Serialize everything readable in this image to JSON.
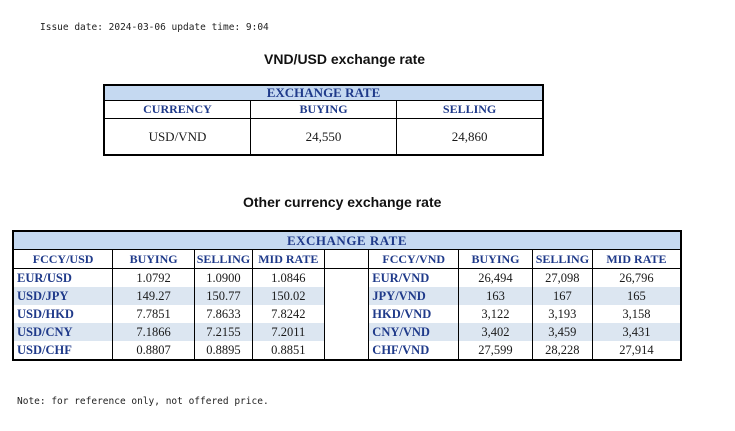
{
  "issue_line": "Issue date: 2024-03-06 update time: 9:04",
  "title_main": "VND/USD exchange rate",
  "main_table": {
    "header": "EXCHANGE RATE",
    "columns": [
      "CURRENCY",
      "BUYING",
      "SELLING"
    ],
    "row": [
      "USD/VND",
      "24,550",
      "24,860"
    ]
  },
  "title_other": "Other currency exchange rate",
  "other_table": {
    "header": "EXCHANGE  RATE",
    "left_columns": [
      "FCCY/USD",
      "BUYING",
      "SELLING",
      "MID RATE"
    ],
    "right_columns": [
      "FCCY/VND",
      "BUYING",
      "SELLING",
      "MID RATE"
    ],
    "rows": [
      {
        "left": [
          "EUR/USD",
          "1.0792",
          "1.0900",
          "1.0846"
        ],
        "right": [
          "EUR/VND",
          "26,494",
          "27,098",
          "26,796"
        ]
      },
      {
        "left": [
          "USD/JPY",
          "149.27",
          "150.77",
          "150.02"
        ],
        "right": [
          "JPY/VND",
          "163",
          "167",
          "165"
        ]
      },
      {
        "left": [
          "USD/HKD",
          "7.7851",
          "7.8633",
          "7.8242"
        ],
        "right": [
          "HKD/VND",
          "3,122",
          "3,193",
          "3,158"
        ]
      },
      {
        "left": [
          "USD/CNY",
          "7.1866",
          "7.2155",
          "7.2011"
        ],
        "right": [
          "CNY/VND",
          "3,402",
          "3,459",
          "3,431"
        ]
      },
      {
        "left": [
          "USD/CHF",
          "0.8807",
          "0.8895",
          "0.8851"
        ],
        "right": [
          "CHF/VND",
          "27,599",
          "28,228",
          "27,914"
        ]
      }
    ]
  },
  "note": "Note: for reference only, not offered price.",
  "colors": {
    "header_fill": "#c5d9f1",
    "header_text": "#1f3a8a",
    "alt_row": "#dce6f1"
  }
}
